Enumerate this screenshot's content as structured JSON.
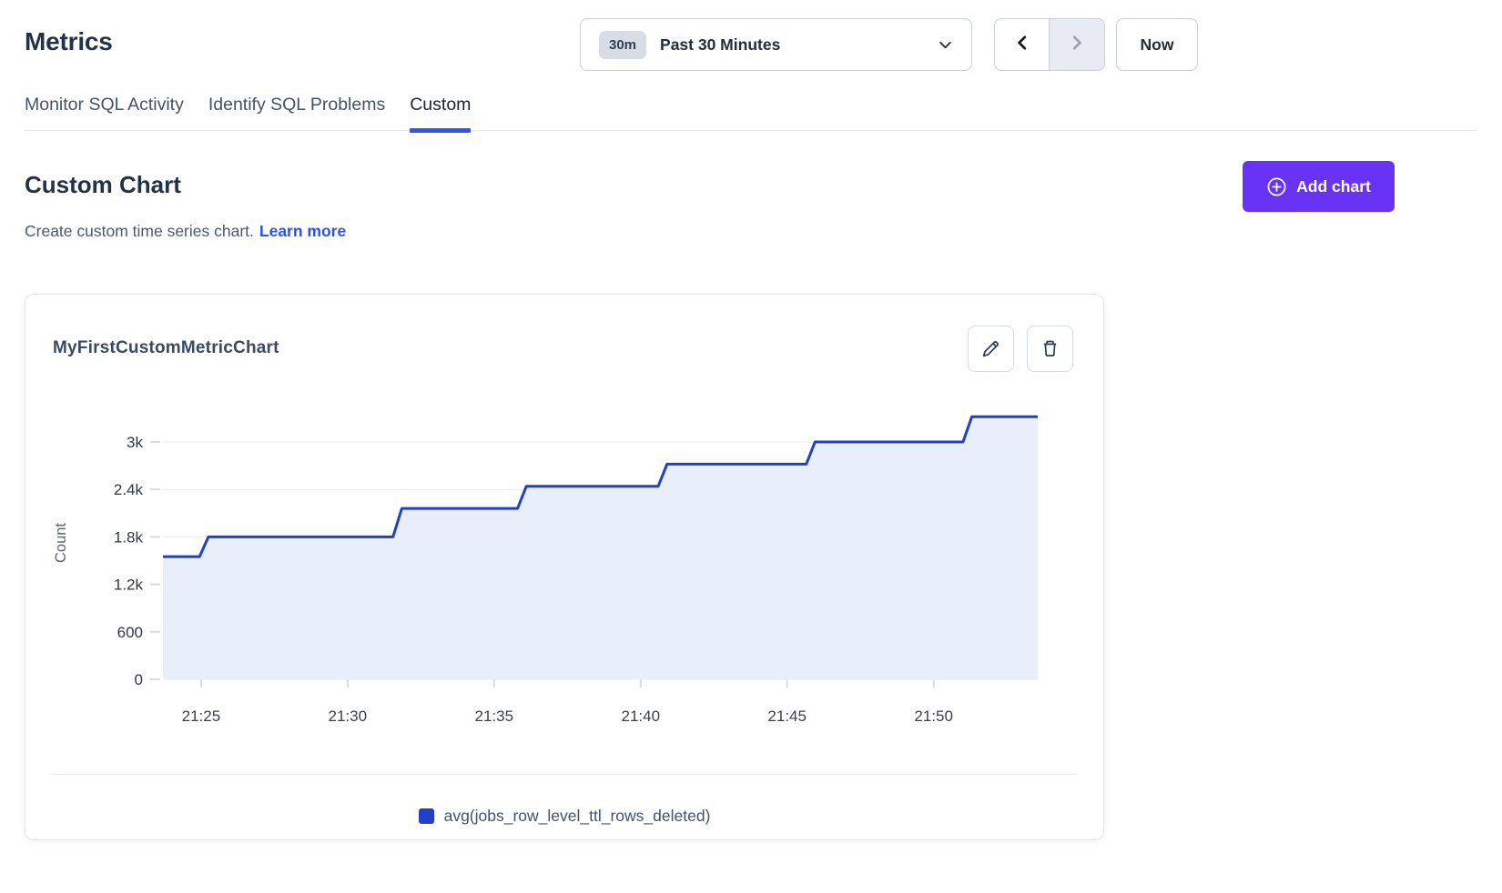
{
  "page": {
    "title": "Metrics"
  },
  "time_controls": {
    "range_badge": "30m",
    "range_label": "Past 30 Minutes",
    "now_label": "Now"
  },
  "tabs": [
    {
      "label": "Monitor SQL Activity",
      "active": false
    },
    {
      "label": "Identify SQL Problems",
      "active": false
    },
    {
      "label": "Custom",
      "active": true
    }
  ],
  "section": {
    "heading": "Custom Chart",
    "subtitle": "Create custom time series chart.",
    "learn_more": "Learn more",
    "add_chart_label": "Add chart"
  },
  "card": {
    "title": "MyFirstCustomMetricChart"
  },
  "colors": {
    "accent_blue": "#2f55f0",
    "link_blue": "#2952f5",
    "button_purple": "#6933f5",
    "series_line": "#2140c7",
    "series_fill": "#e9eefb",
    "gridline": "#e9ebf1",
    "tick": "#d8dbe3"
  },
  "chart_data": {
    "type": "area",
    "step": true,
    "title": "MyFirstCustomMetricChart",
    "xlabel": "",
    "ylabel": "Count",
    "grid": true,
    "legend_position": "bottom-center",
    "x_unit": "minutes after 21:00",
    "x_domain": [
      23.7,
      53.55
    ],
    "ylim": [
      0,
      3450
    ],
    "x_ticks": [
      {
        "t": 25,
        "label": "21:25"
      },
      {
        "t": 30,
        "label": "21:30"
      },
      {
        "t": 35,
        "label": "21:35"
      },
      {
        "t": 40,
        "label": "21:40"
      },
      {
        "t": 45,
        "label": "21:45"
      },
      {
        "t": 50,
        "label": "21:50"
      }
    ],
    "y_ticks": [
      {
        "v": 0,
        "label": "0"
      },
      {
        "v": 600,
        "label": "600"
      },
      {
        "v": 1200,
        "label": "1.2k"
      },
      {
        "v": 1800,
        "label": "1.8k"
      },
      {
        "v": 2400,
        "label": "2.4k"
      },
      {
        "v": 3000,
        "label": "3k"
      }
    ],
    "series": [
      {
        "name": "avg(jobs_row_level_ttl_rows_deleted)",
        "color": "#2140c7",
        "fill": "#e9eefb",
        "points": [
          [
            23.7,
            1550
          ],
          [
            24.95,
            1550
          ],
          [
            25.25,
            1800
          ],
          [
            31.55,
            1800
          ],
          [
            31.85,
            2160
          ],
          [
            35.8,
            2160
          ],
          [
            36.1,
            2440
          ],
          [
            40.6,
            2440
          ],
          [
            40.9,
            2720
          ],
          [
            45.65,
            2720
          ],
          [
            45.95,
            3000
          ],
          [
            51.0,
            3000
          ],
          [
            51.3,
            3320
          ],
          [
            53.55,
            3320
          ]
        ]
      }
    ]
  }
}
